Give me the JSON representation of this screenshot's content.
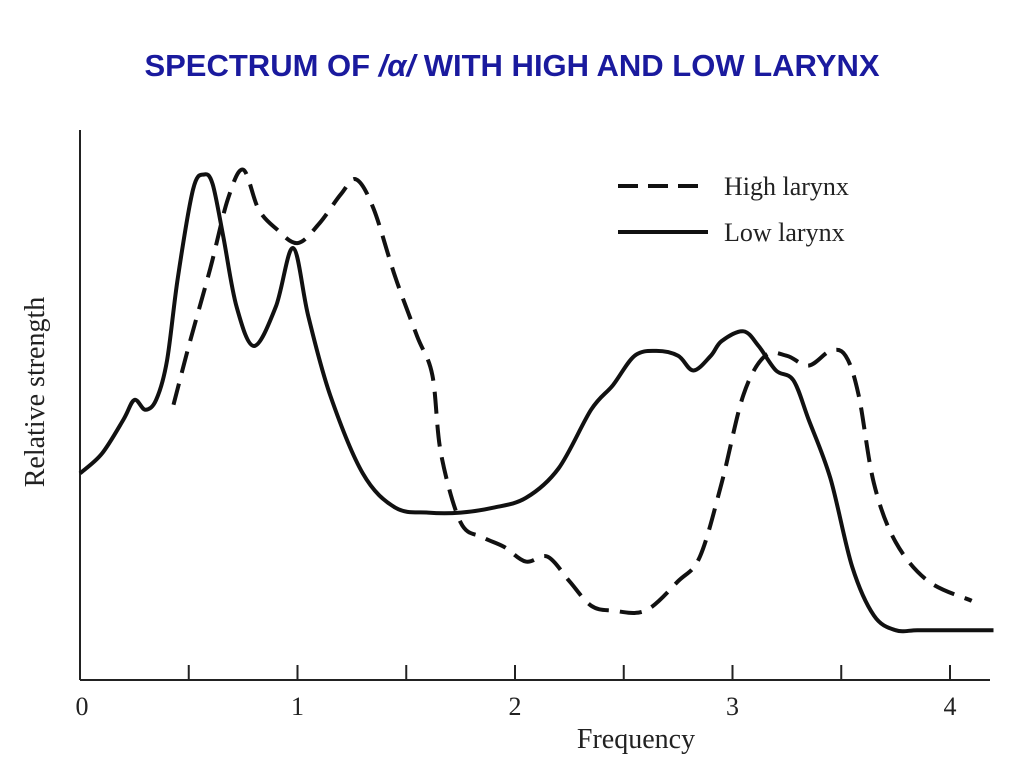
{
  "title": {
    "prefix": "SPECTRUM OF ",
    "symbol": "/α/",
    "suffix": " WITH HIGH AND LOW LARYNX"
  },
  "chart_data": {
    "type": "line",
    "title": "SPECTRUM OF /α/ WITH HIGH AND LOW LARYNX",
    "xlabel": "Frequency",
    "ylabel": "Relative strength",
    "xlim": [
      0,
      4.2
    ],
    "ylim": [
      0,
      100
    ],
    "xticks": [
      0,
      0.5,
      1,
      1.5,
      2,
      2.5,
      3,
      3.5,
      4
    ],
    "xtick_labels": [
      "0",
      "1",
      "2",
      "3",
      "4"
    ],
    "xtick_label_values": [
      0,
      1,
      2,
      3,
      4
    ],
    "grid": false,
    "legend_position": "top-right",
    "series": [
      {
        "name": "High larynx",
        "style": "dashed",
        "color": "#111111",
        "x": [
          0.43,
          0.5,
          0.6,
          0.68,
          0.75,
          0.82,
          0.9,
          1.0,
          1.1,
          1.2,
          1.27,
          1.35,
          1.45,
          1.55,
          1.62,
          1.66,
          1.75,
          1.85,
          1.95,
          2.05,
          2.15,
          2.25,
          2.35,
          2.45,
          2.6,
          2.75,
          2.85,
          2.95,
          3.05,
          3.15,
          3.25,
          3.35,
          3.45,
          3.52,
          3.58,
          3.65,
          3.75,
          3.9,
          4.1
        ],
        "y": [
          48,
          60,
          76,
          90,
          96,
          88,
          84,
          81,
          85,
          91,
          94,
          88,
          74,
          62,
          54,
          38,
          24,
          21,
          19,
          16,
          17,
          12,
          7,
          6,
          6,
          12,
          17,
          32,
          50,
          58,
          58,
          56,
          59,
          58,
          50,
          32,
          20,
          12,
          8
        ]
      },
      {
        "name": "Low larynx",
        "style": "solid",
        "color": "#111111",
        "x": [
          0,
          0.1,
          0.2,
          0.25,
          0.3,
          0.35,
          0.4,
          0.45,
          0.52,
          0.57,
          0.61,
          0.66,
          0.72,
          0.8,
          0.9,
          0.98,
          1.05,
          1.15,
          1.3,
          1.45,
          1.6,
          1.75,
          1.9,
          2.05,
          2.2,
          2.35,
          2.45,
          2.55,
          2.65,
          2.75,
          2.82,
          2.9,
          2.95,
          3.05,
          3.12,
          3.2,
          3.28,
          3.35,
          3.45,
          3.55,
          3.65,
          3.75,
          3.85,
          4.0,
          4.2
        ],
        "y": [
          34,
          38,
          45,
          49,
          47,
          49,
          57,
          74,
          92,
          95,
          93,
          82,
          68,
          60,
          68,
          80,
          66,
          50,
          34,
          27,
          26,
          26,
          27,
          29,
          35,
          47,
          52,
          58,
          59,
          58,
          55,
          58,
          61,
          63,
          60,
          55,
          53,
          45,
          33,
          15,
          5,
          2,
          2,
          2,
          2
        ]
      }
    ]
  }
}
